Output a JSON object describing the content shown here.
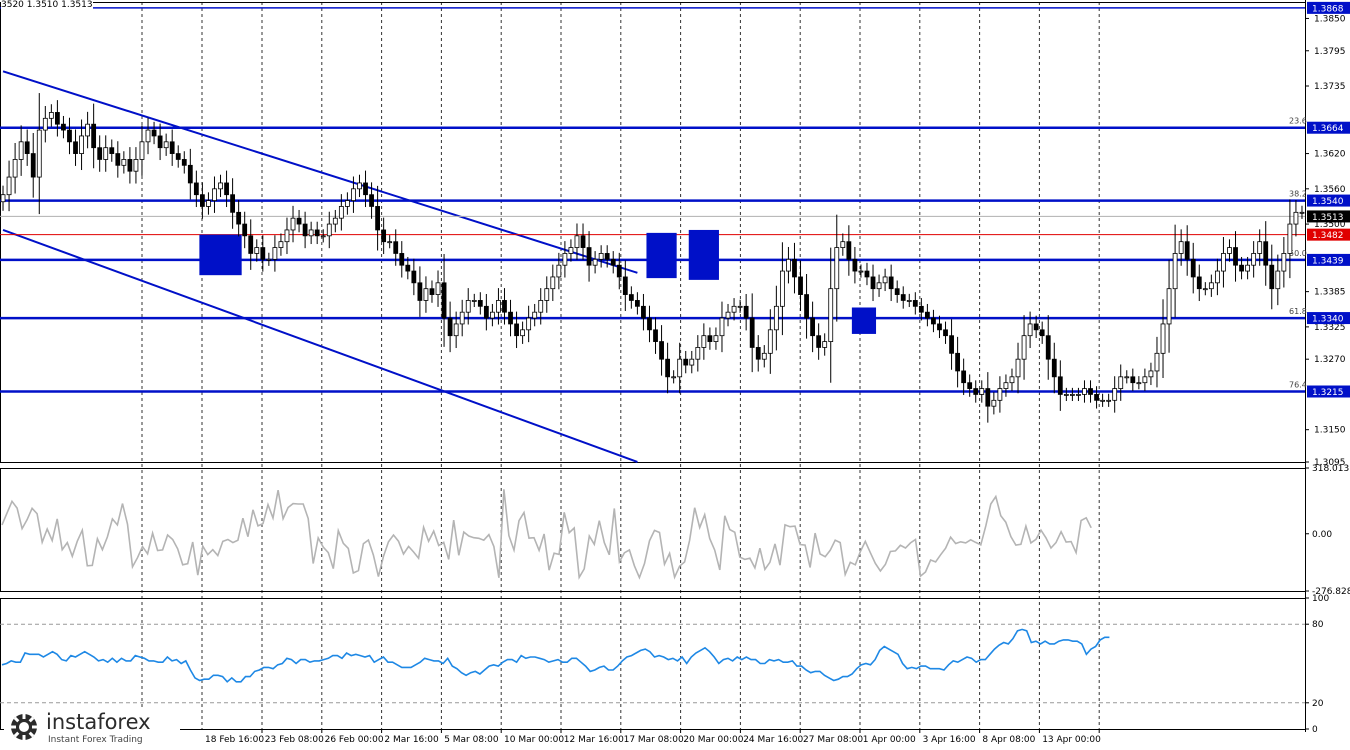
{
  "ohlc_readout": "3520 1.3510 1.3513",
  "brand": {
    "name": "instaforex",
    "tagline": "Instant Forex Trading"
  },
  "colors": {
    "level_line": "#0010c8",
    "current_price": "#e00000",
    "candle": "#000000",
    "cci": "#b4b4b4",
    "rsi": "#1e88e5",
    "grid": "#000000",
    "badge_blue": "#0010c8",
    "badge_red": "#e00000",
    "badge_dark": "#000000"
  },
  "chart_data": [
    {
      "type": "candlestick",
      "time_labels": [
        "18 Feb 16:00",
        "23 Feb 08:00",
        "26 Feb 00:00",
        "2 Mar 16:00",
        "5 Mar 08:00",
        "10 Mar 00:00",
        "12 Mar 16:00",
        "17 Mar 08:00",
        "20 Mar 00:00",
        "24 Mar 16:00",
        "27 Mar 08:00",
        "1 Apr 00:00",
        "3 Apr 16:00",
        "8 Apr 08:00",
        "13 Apr 00:00"
      ],
      "price_ticks": [
        "1.3850",
        "1.3795",
        "1.3735",
        "1.3620",
        "1.3560",
        "1.3500",
        "1.3385",
        "1.3325",
        "1.3270",
        "1.3150",
        "1.3095"
      ],
      "ylim": [
        1.3095,
        1.3878
      ],
      "close": [
        1.355,
        1.358,
        1.361,
        1.364,
        1.362,
        1.358,
        1.366,
        1.368,
        1.369,
        1.367,
        1.366,
        1.364,
        1.362,
        1.365,
        1.367,
        1.363,
        1.361,
        1.363,
        1.362,
        1.36,
        1.361,
        1.359,
        1.361,
        1.364,
        1.366,
        1.365,
        1.363,
        1.364,
        1.362,
        1.361,
        1.36,
        1.357,
        1.355,
        1.353,
        1.354,
        1.356,
        1.357,
        1.355,
        1.352,
        1.35,
        1.348,
        1.345,
        1.346,
        1.344,
        1.344,
        1.346,
        1.347,
        1.349,
        1.351,
        1.35,
        1.348,
        1.349,
        1.348,
        1.348,
        1.35,
        1.351,
        1.353,
        1.354,
        1.356,
        1.357,
        1.355,
        1.353,
        1.349,
        1.347,
        1.347,
        1.345,
        1.343,
        1.342,
        1.34,
        1.337,
        1.339,
        1.338,
        1.34,
        1.334,
        1.331,
        1.333,
        1.335,
        1.337,
        1.337,
        1.336,
        1.334,
        1.335,
        1.337,
        1.335,
        1.333,
        1.331,
        1.332,
        1.334,
        1.335,
        1.337,
        1.339,
        1.341,
        1.343,
        1.345,
        1.346,
        1.348,
        1.346,
        1.343,
        1.344,
        1.345,
        1.344,
        1.343,
        1.341,
        1.338,
        1.337,
        1.336,
        1.334,
        1.332,
        1.33,
        1.327,
        1.324,
        1.324,
        1.327,
        1.326,
        1.327,
        1.329,
        1.331,
        1.33,
        1.331,
        1.334,
        1.335,
        1.336,
        1.336,
        1.334,
        1.329,
        1.327,
        1.328,
        1.332,
        1.336,
        1.342,
        1.344,
        1.341,
        1.338,
        1.334,
        1.331,
        1.329,
        1.33,
        1.339,
        1.346,
        1.347,
        1.344,
        1.342,
        1.342,
        1.341,
        1.339,
        1.34,
        1.341,
        1.339,
        1.338,
        1.337,
        1.337,
        1.336,
        1.335,
        1.334,
        1.333,
        1.332,
        1.331,
        1.328,
        1.325,
        1.323,
        1.322,
        1.321,
        1.322,
        1.319,
        1.32,
        1.322,
        1.323,
        1.324,
        1.327,
        1.331,
        1.333,
        1.332,
        1.331,
        1.327,
        1.324,
        1.321,
        1.321,
        1.321,
        1.321,
        1.322,
        1.321,
        1.32,
        1.32,
        1.32,
        1.322,
        1.324,
        1.324,
        1.323,
        1.323,
        1.324,
        1.325,
        1.328,
        1.333,
        1.339,
        1.345,
        1.347,
        1.344,
        1.341,
        1.339,
        1.339,
        1.34,
        1.342,
        1.345,
        1.346,
        1.343,
        1.342,
        1.343,
        1.345,
        1.347,
        1.343,
        1.339,
        1.342,
        1.345,
        1.35,
        1.352,
        1.352
      ],
      "levels": [
        {
          "label": "1.3868",
          "value": 1.3868,
          "fib": ""
        },
        {
          "label": "1.3664",
          "value": 1.3664,
          "fib": "23.6"
        },
        {
          "label": "1.3540",
          "value": 1.354,
          "fib": "38.2"
        },
        {
          "label": "1.3439",
          "value": 1.3439,
          "fib": "50.0"
        },
        {
          "label": "1.3340",
          "value": 1.334,
          "fib": "61.8"
        },
        {
          "label": "1.3215",
          "value": 1.3215,
          "fib": "76.4"
        }
      ],
      "current_price": {
        "label": "1.3513",
        "value": 1.3513
      },
      "marked_level": {
        "label": "1.3482",
        "value": 1.3482
      },
      "trend_channel": [
        {
          "from": [
            0,
            1.376
          ],
          "to": [
            105,
            1.3417
          ]
        },
        {
          "from": [
            0,
            1.349
          ],
          "to": [
            105,
            1.3095
          ]
        }
      ],
      "signal_boxes": [
        {
          "from_index": 33,
          "to_index": 39,
          "top": 1.3482,
          "bottom": 1.3413
        },
        {
          "from_index": 107,
          "to_index": 111,
          "top": 1.3485,
          "bottom": 1.3408
        },
        {
          "from_index": 114,
          "to_index": 118,
          "top": 1.349,
          "bottom": 1.3405
        },
        {
          "from_index": 141,
          "to_index": 144,
          "top": 1.3358,
          "bottom": 1.3313
        }
      ]
    },
    {
      "type": "line",
      "name": "",
      "ticks": [
        "318.013",
        "0.00",
        "-276.828"
      ],
      "ylim": [
        -276.828,
        318.013
      ],
      "values": [
        43,
        100,
        157,
        124,
        25,
        68,
        123,
        97,
        -41,
        23,
        -33,
        72,
        -77,
        -43,
        -109,
        -36,
        17,
        -155,
        -153,
        -24,
        -77,
        -15,
        72,
        43,
        146,
        46,
        -160,
        -116,
        -62,
        -97,
        3,
        -81,
        -78,
        -6,
        -28,
        -73,
        -150,
        -145,
        -40,
        -200,
        -60,
        -101,
        -77,
        -105,
        -37,
        -28,
        -43,
        -31,
        75,
        -14,
        116,
        38,
        49,
        141,
        76,
        211,
        73,
        127,
        146,
        144,
        144,
        74,
        -144,
        -20,
        -64,
        -91,
        -169,
        15,
        -46,
        -71,
        -190,
        -178,
        -48,
        -30,
        -103,
        -207,
        -109,
        -39,
        -6,
        -36,
        -98,
        -61,
        -88,
        -118,
        31,
        -36,
        13,
        -57,
        -42,
        -124,
        66,
        -104,
        8,
        -11,
        -19,
        -22,
        -31,
        -4,
        -62,
        -213,
        215,
        -9,
        -79,
        63,
        103,
        -21,
        -19,
        -80,
        -1,
        -176,
        -94,
        -100,
        104,
        5,
        28,
        -211,
        -170,
        -11,
        -51,
        63,
        -43,
        -102,
        122,
        -135,
        -92,
        -78,
        -155,
        -212,
        -144,
        -34,
        16,
        6,
        -147,
        -95,
        -210,
        -157,
        -136,
        -32,
        126,
        30,
        92,
        -23,
        -79,
        -175,
        87,
        20,
        7,
        -113,
        -124,
        -118,
        -165,
        -70,
        -172,
        -138,
        -49,
        -152,
        43,
        34,
        37,
        -52,
        -55,
        -163,
        3,
        -98,
        -111,
        -80,
        -31,
        -43,
        -197,
        -138,
        -150,
        -87,
        -37,
        -91,
        -143,
        -180,
        -148,
        -86,
        -83,
        -56,
        -69,
        -44,
        -28,
        -205,
        -185,
        -127,
        -136,
        -102,
        -70,
        -16,
        -47,
        -39,
        -44,
        -29,
        -42,
        -54,
        38,
        144,
        180,
        87,
        56,
        -14,
        -55,
        -51,
        37,
        -44,
        -27,
        17,
        -20,
        -69,
        -43,
        10,
        -40,
        -38,
        -91,
        64,
        77,
        29
      ]
    },
    {
      "type": "line",
      "name": "",
      "ticks": [
        "100",
        "80",
        "20",
        "0"
      ],
      "ylim": [
        0,
        100
      ],
      "guides": [
        80,
        20
      ],
      "values": [
        49,
        50,
        52,
        51,
        51,
        58,
        57,
        57,
        57,
        55,
        57,
        59,
        57,
        53,
        52,
        56,
        55,
        57,
        59,
        57,
        55,
        52,
        53,
        51,
        54,
        51,
        54,
        52,
        52,
        56,
        55,
        54,
        52,
        52,
        51,
        51,
        55,
        52,
        53,
        50,
        52,
        45,
        39,
        37,
        38,
        38,
        41,
        41,
        40,
        36,
        39,
        36,
        36,
        40,
        40,
        44,
        45,
        47,
        47,
        46,
        49,
        50,
        54,
        53,
        50,
        53,
        53,
        51,
        52,
        52,
        53,
        54,
        56,
        56,
        54,
        58,
        56,
        57,
        56,
        55,
        56,
        51,
        53,
        55,
        51,
        51,
        49,
        47,
        47,
        47,
        49,
        51,
        54,
        53,
        52,
        52,
        50,
        54,
        48,
        46,
        43,
        41,
        43,
        44,
        42,
        45,
        48,
        49,
        48,
        51,
        53,
        53,
        51,
        56,
        54,
        55,
        55,
        54,
        53,
        51,
        52,
        53,
        51,
        51,
        54,
        54,
        51,
        48,
        44,
        45,
        47,
        48,
        45,
        45,
        48,
        52,
        55,
        56,
        58,
        60,
        61,
        59,
        55,
        56,
        55,
        53,
        54,
        52,
        55,
        50,
        55,
        58,
        60,
        62,
        59,
        55,
        50,
        53,
        54,
        52,
        55,
        53,
        55,
        53,
        53,
        50,
        50,
        53,
        52,
        53,
        51,
        51,
        52,
        48,
        48,
        45,
        43,
        44,
        44,
        41,
        39,
        37,
        38,
        40,
        40,
        42,
        46,
        49,
        50,
        49,
        53,
        60,
        63,
        61,
        59,
        57,
        50,
        46,
        47,
        46,
        48,
        48,
        46,
        46,
        46,
        45,
        49,
        52,
        51,
        53,
        55,
        54,
        51,
        53,
        53,
        57,
        61,
        64,
        66,
        65,
        69,
        75,
        76,
        75,
        66,
        67,
        65,
        67,
        65,
        65,
        67,
        68,
        68,
        67,
        67,
        65,
        57,
        61,
        63,
        68,
        70,
        70
      ]
    }
  ]
}
